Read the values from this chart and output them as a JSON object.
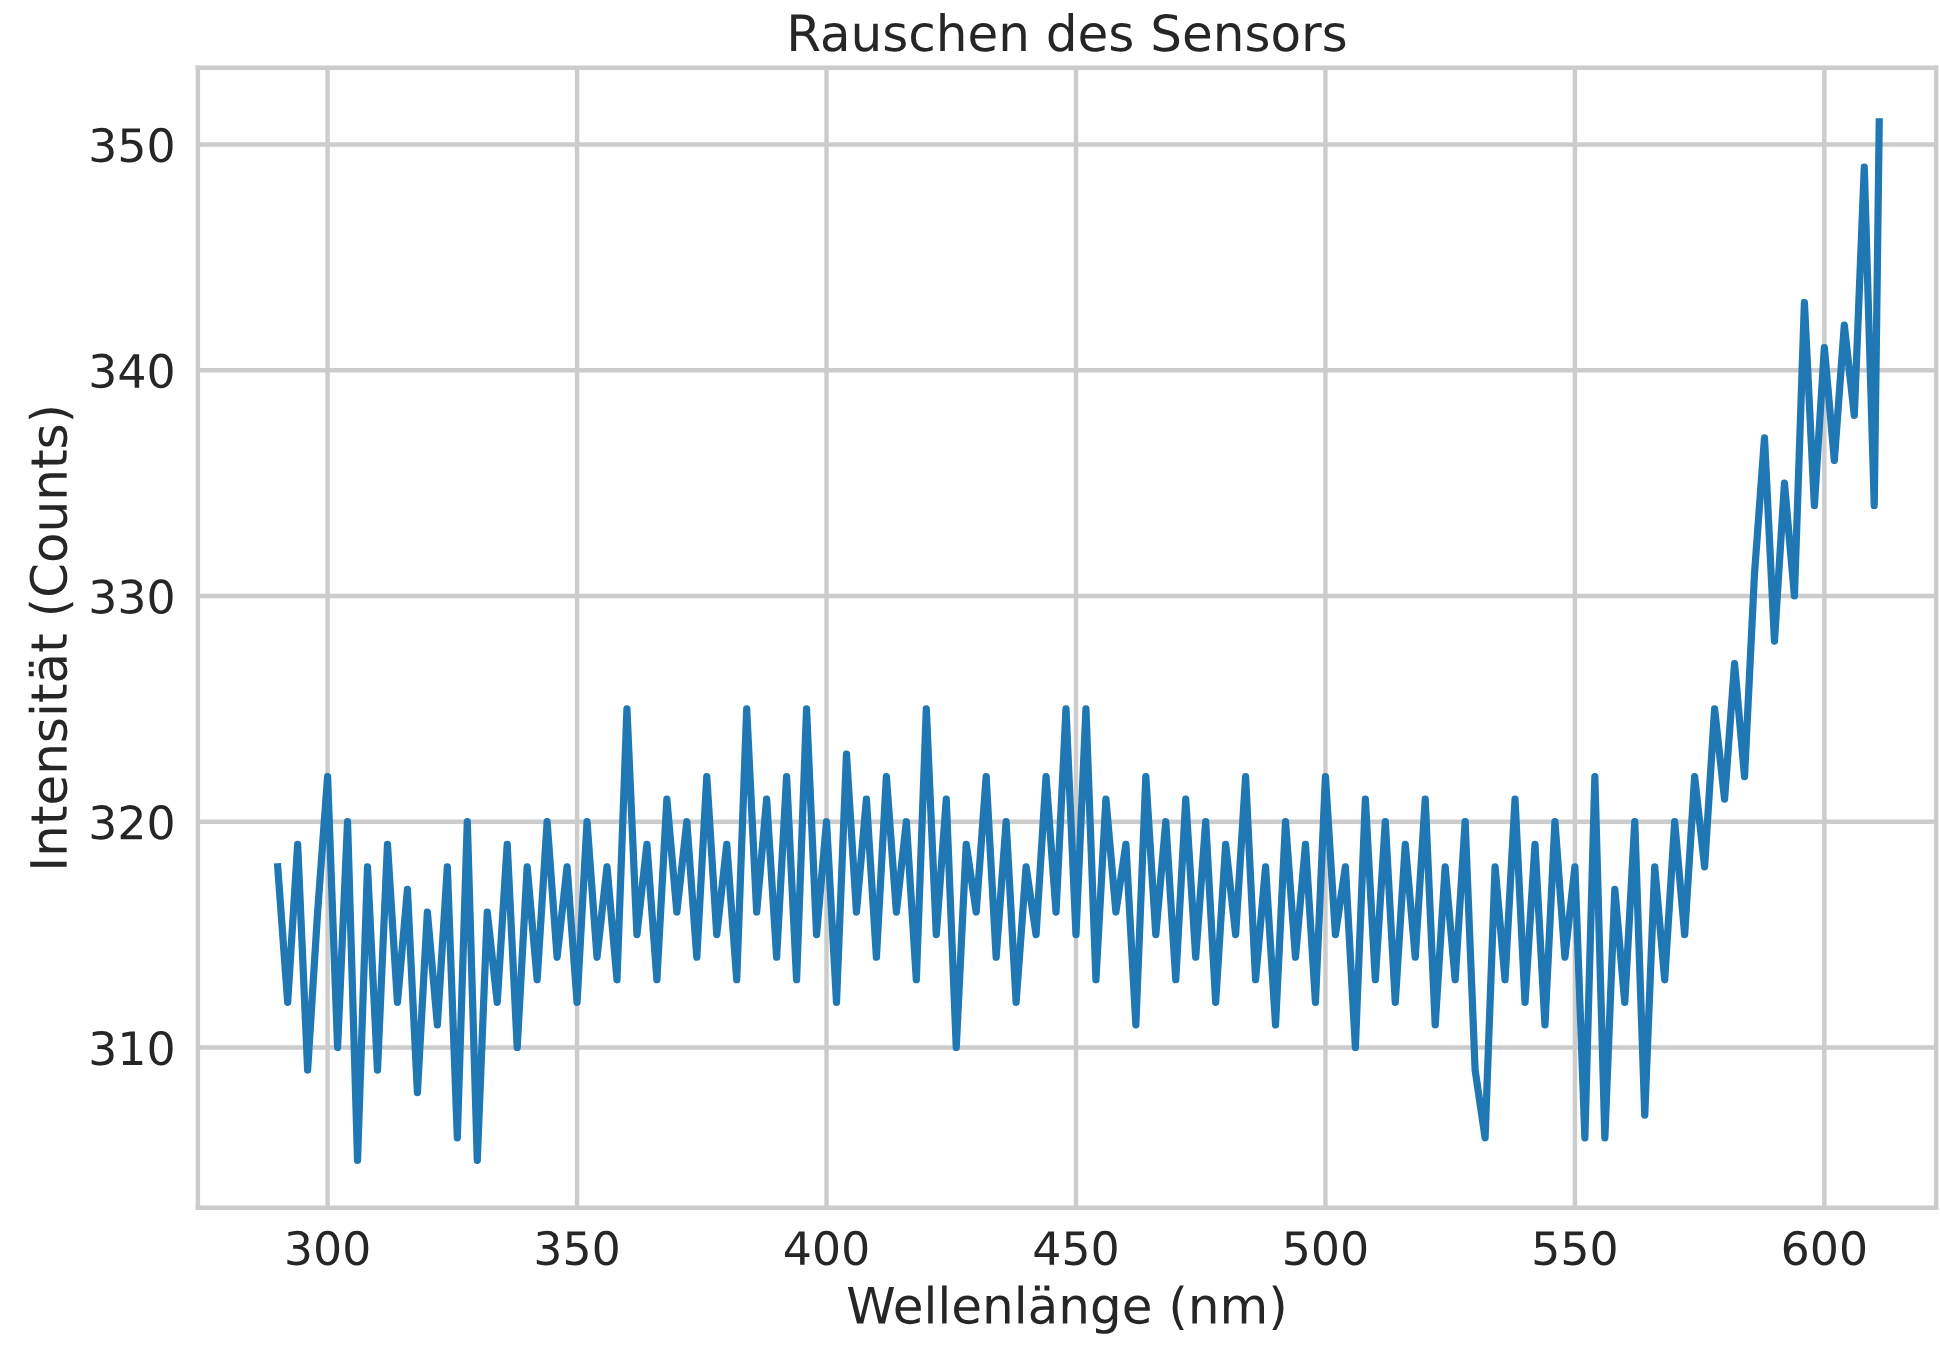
{
  "chart_data": {
    "type": "line",
    "title": "Rauschen des Sensors",
    "xlabel": "Wellenlänge (nm)",
    "ylabel": "Intensität (Counts)",
    "xlim": [
      274,
      622.4
    ],
    "ylim": [
      302.9,
      353.4
    ],
    "xticks": [
      300,
      350,
      400,
      450,
      500,
      550,
      600
    ],
    "yticks": [
      310,
      320,
      330,
      340,
      350
    ],
    "grid": true,
    "marker": "none",
    "line_style": "solid",
    "x": [
      290,
      292,
      294,
      296,
      298,
      300,
      302,
      304,
      306,
      308,
      310,
      312,
      314,
      316,
      318,
      320,
      322,
      324,
      326,
      328,
      330,
      332,
      334,
      336,
      338,
      340,
      342,
      344,
      346,
      348,
      350,
      352,
      354,
      356,
      358,
      360,
      362,
      364,
      366,
      368,
      370,
      372,
      374,
      376,
      378,
      380,
      382,
      384,
      386,
      388,
      390,
      392,
      394,
      396,
      398,
      400,
      402,
      404,
      406,
      408,
      410,
      412,
      414,
      416,
      418,
      420,
      422,
      424,
      426,
      428,
      430,
      432,
      434,
      436,
      438,
      440,
      442,
      444,
      446,
      448,
      450,
      452,
      454,
      456,
      458,
      460,
      462,
      464,
      466,
      468,
      470,
      472,
      474,
      476,
      478,
      480,
      482,
      484,
      486,
      488,
      490,
      492,
      494,
      496,
      498,
      500,
      502,
      504,
      506,
      508,
      510,
      512,
      514,
      516,
      518,
      520,
      522,
      524,
      526,
      528,
      530,
      532,
      534,
      536,
      538,
      540,
      542,
      544,
      546,
      548,
      550,
      552,
      554,
      556,
      558,
      560,
      562,
      564,
      566,
      568,
      570,
      572,
      574,
      576,
      578,
      580,
      582,
      584,
      586,
      588,
      590,
      592,
      594,
      596,
      598,
      600,
      602,
      604,
      606,
      608,
      610,
      611
    ],
    "series": [
      {
        "color": "#1f77b4",
        "values": [
          318,
          312,
          319,
          309,
          316,
          322,
          310,
          320,
          305,
          318,
          309,
          319,
          312,
          317,
          308,
          316,
          311,
          318,
          306,
          320,
          305,
          316,
          312,
          319,
          310,
          318,
          313,
          320,
          314,
          318,
          312,
          320,
          314,
          318,
          313,
          325,
          315,
          319,
          313,
          321,
          316,
          320,
          314,
          322,
          315,
          319,
          313,
          325,
          316,
          321,
          314,
          322,
          313,
          325,
          315,
          320,
          312,
          323,
          316,
          321,
          314,
          322,
          316,
          320,
          313,
          325,
          315,
          321,
          310,
          319,
          316,
          322,
          314,
          320,
          312,
          318,
          315,
          322,
          316,
          325,
          315,
          325,
          313,
          321,
          316,
          319,
          311,
          322,
          315,
          320,
          313,
          321,
          314,
          320,
          312,
          319,
          315,
          322,
          313,
          318,
          311,
          320,
          314,
          319,
          312,
          322,
          315,
          318,
          310,
          321,
          313,
          320,
          312,
          319,
          314,
          321,
          311,
          318,
          313,
          320,
          309,
          306,
          318,
          313,
          321,
          312,
          319,
          311,
          320,
          314,
          318,
          306,
          322,
          306,
          317,
          312,
          320,
          307,
          318,
          313,
          320,
          315,
          322,
          318,
          325,
          321,
          327,
          322,
          331,
          337,
          328,
          335,
          330,
          343,
          334,
          341,
          336,
          342,
          338,
          349,
          334,
          351
        ]
      }
    ]
  }
}
